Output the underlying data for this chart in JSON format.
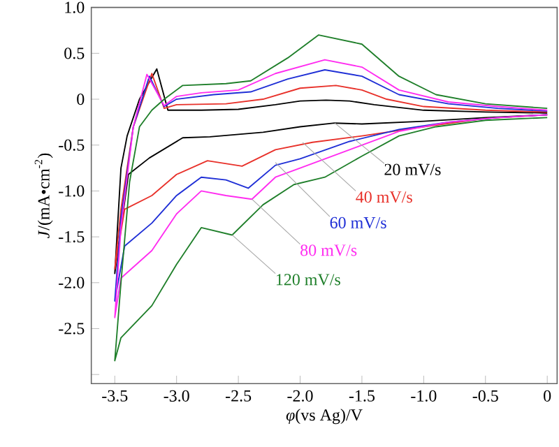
{
  "chart_data": {
    "type": "line",
    "xlabel": "*φ*(vs Ag)/V",
    "ylabel": "*J*/(mA•cm$^{-2}$)",
    "xlim": [
      -3.69,
      0.08
    ],
    "ylim": [
      -3.1,
      1.0
    ],
    "xticks": [
      -3.5,
      {
        "value": -3.0,
        "label": "-3.0"
      },
      -2.5,
      {
        "value": -2.0,
        "label": "-2.0"
      },
      -1.5,
      {
        "value": -1.0,
        "label": "-1.0"
      },
      -0.5,
      0
    ],
    "yticks": [
      {
        "value": -3.0,
        "label": null
      },
      -2.5,
      {
        "value": -2.0,
        "label": "-2.0"
      },
      -1.5,
      {
        "value": -1.0,
        "label": "-1.0"
      },
      -0.5,
      0,
      0.5,
      {
        "value": 1.0,
        "label": "1.0"
      }
    ],
    "legend": false,
    "grid": false,
    "marker": "none",
    "line_style": "solid",
    "series": [
      {
        "name": "20 mV/s",
        "color": "#000000",
        "x": [
          0,
          -0.5,
          -1.0,
          -1.5,
          -1.72,
          -2.0,
          -2.3,
          -2.73,
          -2.95,
          -3.22,
          -3.39,
          -3.5,
          -3.45,
          -3.4,
          -3.3,
          -3.16,
          -3.07,
          -2.8,
          -2.5,
          -2.2,
          -2.0,
          -1.79,
          -1.6,
          -1.4,
          -1.0,
          -0.5,
          0
        ],
        "values": [
          -0.17,
          -0.2,
          -0.24,
          -0.27,
          -0.26,
          -0.3,
          -0.36,
          -0.41,
          -0.42,
          -0.64,
          -0.82,
          -1.9,
          -0.75,
          -0.4,
          0.0,
          0.33,
          -0.12,
          -0.12,
          -0.11,
          -0.06,
          -0.02,
          -0.01,
          -0.02,
          -0.06,
          -0.12,
          -0.14,
          -0.15
        ]
      },
      {
        "name": "40 mV/s",
        "color": "#e8312a",
        "x": [
          0,
          -0.5,
          -1.0,
          -1.5,
          -1.9,
          -2.2,
          -2.47,
          -2.75,
          -3.0,
          -3.2,
          -3.42,
          -3.5,
          -3.45,
          -3.35,
          -3.2,
          -3.1,
          -3.0,
          -2.6,
          -2.3,
          -2.0,
          -1.71,
          -1.5,
          -1.3,
          -1.0,
          -0.5,
          0
        ],
        "values": [
          -0.17,
          -0.21,
          -0.3,
          -0.4,
          -0.47,
          -0.55,
          -0.73,
          -0.67,
          -0.82,
          -1.05,
          -1.2,
          -1.85,
          -1.2,
          -0.3,
          0.28,
          -0.1,
          -0.06,
          -0.05,
          0.0,
          0.12,
          0.15,
          0.1,
          0.0,
          -0.08,
          -0.12,
          -0.14
        ]
      },
      {
        "name": "60 mV/s",
        "color": "#1f2fd6",
        "x": [
          0,
          -0.4,
          -0.8,
          -1.2,
          -1.6,
          -2.0,
          -2.2,
          -2.42,
          -2.6,
          -2.8,
          -3.0,
          -3.2,
          -3.42,
          -3.5,
          -3.45,
          -3.35,
          -3.22,
          -3.1,
          -3.0,
          -2.7,
          -2.4,
          -2.1,
          -1.8,
          -1.5,
          -1.2,
          -0.8,
          -0.4,
          0
        ],
        "values": [
          -0.17,
          -0.2,
          -0.25,
          -0.33,
          -0.46,
          -0.65,
          -0.72,
          -0.97,
          -0.88,
          -0.85,
          -1.05,
          -1.35,
          -1.6,
          -2.2,
          -1.3,
          -0.3,
          0.25,
          -0.08,
          0.0,
          0.05,
          0.08,
          0.22,
          0.32,
          0.25,
          0.05,
          -0.05,
          -0.1,
          -0.13
        ]
      },
      {
        "name": "80 mV/s",
        "color": "#ff2cf0",
        "x": [
          0,
          -0.4,
          -0.8,
          -1.2,
          -1.6,
          -2.0,
          -2.2,
          -2.39,
          -2.6,
          -2.8,
          -3.0,
          -3.2,
          -3.45,
          -3.5,
          -3.45,
          -3.35,
          -3.24,
          -3.1,
          -3.0,
          -2.8,
          -2.5,
          -2.2,
          -1.8,
          -1.5,
          -1.2,
          -0.8,
          -0.4,
          0
        ],
        "values": [
          -0.17,
          -0.2,
          -0.25,
          -0.35,
          -0.55,
          -0.75,
          -0.85,
          -1.09,
          -1.05,
          -1.0,
          -1.25,
          -1.65,
          -1.95,
          -2.38,
          -1.4,
          -0.3,
          0.27,
          -0.07,
          0.03,
          0.07,
          0.1,
          0.28,
          0.43,
          0.35,
          0.1,
          -0.03,
          -0.08,
          -0.12
        ]
      },
      {
        "name": "120 mV/s",
        "color": "#1f7f2a",
        "x": [
          0,
          -0.5,
          -0.9,
          -1.2,
          -1.5,
          -1.8,
          -2.05,
          -2.3,
          -2.55,
          -2.8,
          -3.0,
          -3.2,
          -3.45,
          -3.5,
          -3.45,
          -3.38,
          -3.3,
          -3.2,
          -3.1,
          -2.95,
          -2.6,
          -2.4,
          -2.1,
          -1.85,
          -1.5,
          -1.2,
          -0.9,
          -0.5,
          0
        ],
        "values": [
          -0.2,
          -0.23,
          -0.3,
          -0.4,
          -0.62,
          -0.85,
          -0.93,
          -1.15,
          -1.48,
          -1.4,
          -1.8,
          -2.25,
          -2.6,
          -2.85,
          -2.0,
          -0.9,
          -0.3,
          -0.12,
          0.0,
          0.15,
          0.17,
          0.2,
          0.45,
          0.7,
          0.6,
          0.25,
          0.05,
          -0.05,
          -0.1
        ]
      }
    ]
  }
}
